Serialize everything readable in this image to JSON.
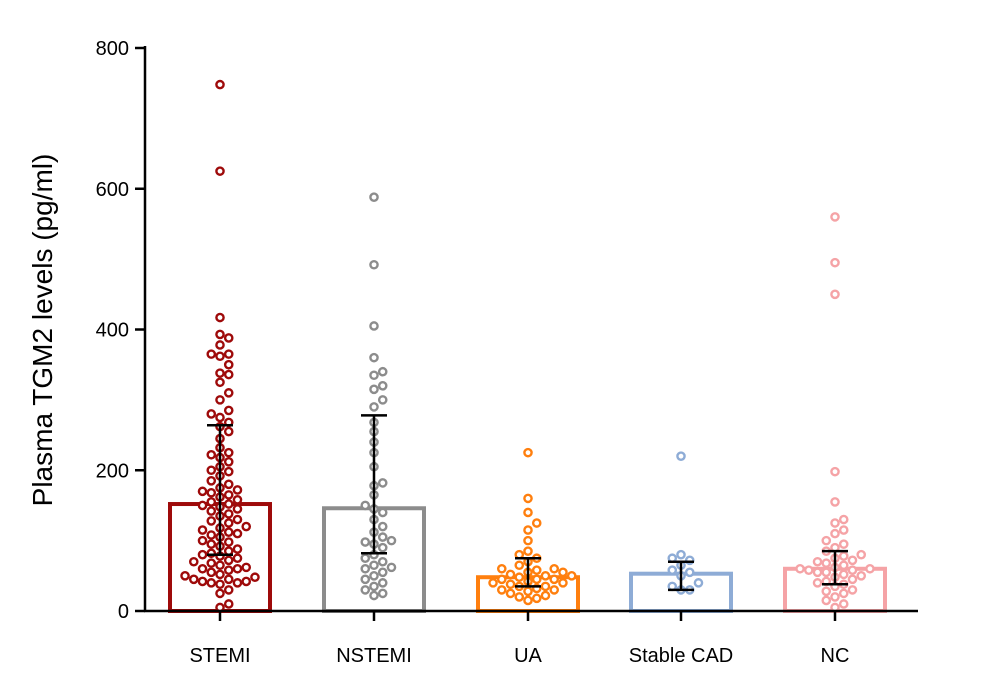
{
  "chart_data": {
    "type": "bar",
    "title": "",
    "xlabel": "",
    "ylabel": "Plasma TGM2 levels (pg/ml)",
    "ylim": [
      0,
      800
    ],
    "yticks": [
      0,
      200,
      400,
      600,
      800
    ],
    "grid": false,
    "categories": [
      "STEMI",
      "NSTEMI",
      "UA",
      "Stable CAD",
      "NC"
    ],
    "series": [
      {
        "name": "STEMI",
        "color": "#9e0a0a",
        "mean": 152,
        "err_low": 80,
        "err_high": 264,
        "points": [
          748,
          625,
          417,
          393,
          388,
          378,
          365,
          365,
          362,
          350,
          338,
          336,
          325,
          310,
          300,
          285,
          280,
          275,
          268,
          262,
          255,
          245,
          232,
          225,
          222,
          218,
          212,
          205,
          200,
          198,
          192,
          185,
          180,
          175,
          172,
          168,
          165,
          162,
          158,
          155,
          152,
          148,
          145,
          142,
          138,
          135,
          130,
          128,
          125,
          120,
          118,
          115,
          112,
          108,
          105,
          100,
          98,
          95,
          92,
          88,
          85,
          82,
          80,
          78,
          75,
          72,
          68,
          65,
          62,
          60,
          58,
          55,
          52,
          50,
          48,
          45,
          42,
          40,
          38,
          40,
          42,
          45,
          30,
          25,
          10,
          5,
          60,
          70,
          110,
          150,
          170
        ]
      },
      {
        "name": "NSTEMI",
        "color": "#8c8c8c",
        "mean": 146,
        "err_low": 82,
        "err_high": 278,
        "points": [
          588,
          492,
          405,
          360,
          340,
          335,
          320,
          315,
          300,
          290,
          268,
          255,
          240,
          225,
          205,
          182,
          178,
          165,
          150,
          145,
          140,
          130,
          120,
          112,
          105,
          100,
          98,
          95,
          90,
          80,
          75,
          70,
          65,
          62,
          60,
          55,
          50,
          45,
          40,
          35,
          30,
          25,
          22
        ]
      },
      {
        "name": "UA",
        "color": "#ff7f0e",
        "mean": 48,
        "err_low": 35,
        "err_high": 75,
        "points": [
          225,
          160,
          140,
          125,
          115,
          100,
          85,
          80,
          75,
          70,
          65,
          60,
          58,
          55,
          52,
          50,
          50,
          48,
          45,
          45,
          42,
          40,
          40,
          38,
          35,
          35,
          32,
          30,
          28,
          25,
          22,
          20,
          18,
          15,
          55,
          60,
          45,
          30
        ]
      },
      {
        "name": "Stable CAD",
        "color": "#8eacd6",
        "mean": 53,
        "err_low": 30,
        "err_high": 70,
        "points": [
          220,
          80,
          75,
          72,
          65,
          58,
          55,
          50,
          40,
          35,
          30,
          30
        ]
      },
      {
        "name": "NC",
        "color": "#f5a3a6",
        "mean": 60,
        "err_low": 38,
        "err_high": 85,
        "points": [
          560,
          495,
          450,
          198,
          155,
          130,
          125,
          115,
          110,
          100,
          95,
          90,
          85,
          80,
          78,
          75,
          72,
          70,
          68,
          65,
          62,
          60,
          60,
          58,
          58,
          55,
          55,
          52,
          50,
          48,
          45,
          42,
          40,
          38,
          35,
          30,
          28,
          25,
          20,
          15,
          10,
          5
        ]
      }
    ]
  }
}
